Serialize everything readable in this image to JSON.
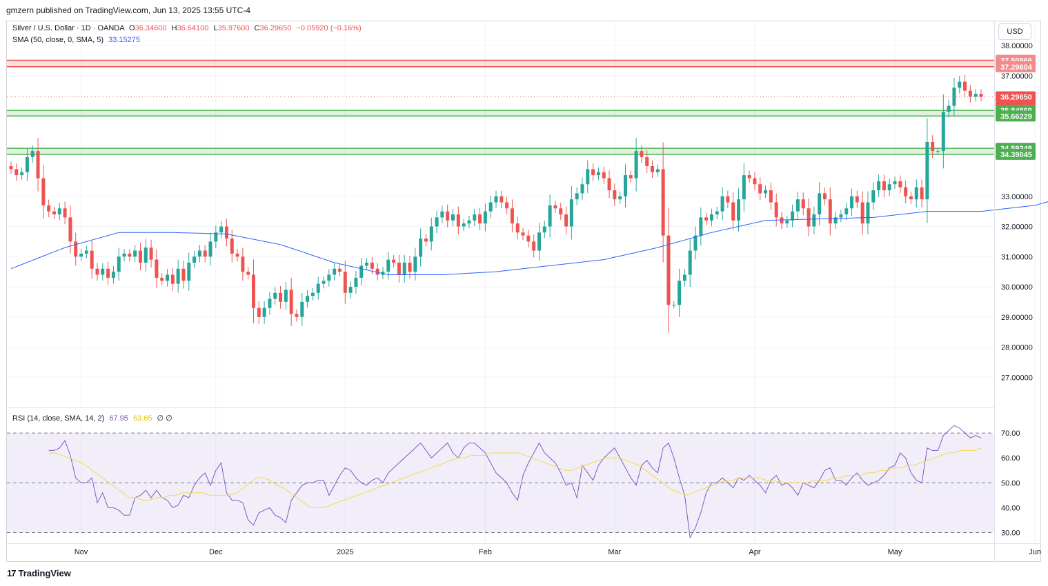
{
  "header": {
    "published": "gmzern published on TradingView.com, Jun 13, 2025 13:55 UTC-4"
  },
  "legend": {
    "symbol": "Silver / U.S. Dollar · 1D · OANDA",
    "o_label": "O",
    "o": "36.34600",
    "h_label": "H",
    "h": "36.64100",
    "l_label": "L",
    "l": "35.97600",
    "c_label": "C",
    "c": "36.29650",
    "change": "−0.05920 (−0.16%)",
    "sma_label": "SMA (50, close, 0, SMA, 5)",
    "sma_value": "33.15275",
    "rsi_label": "RSI (14, close, SMA, 14, 2)",
    "rsi_value": "67.95",
    "rsi_sma_value": "63.65",
    "rsi_extra": "∅ ∅"
  },
  "currency_button": "USD",
  "footer": {
    "brand": "TradingView",
    "logo_icon": "tradingview-logo-icon"
  },
  "colors": {
    "up": "#26a69a",
    "down": "#ef5350",
    "sma": "#2962ff",
    "rsi": "#7e57c2",
    "rsi_sma": "#f5d84a",
    "resistance_zone": "#ef5350",
    "support_zone": "#4caf50"
  },
  "chart_data": [
    {
      "type": "candlestick",
      "title": "Silver / U.S. Dollar · 1D · OANDA",
      "ylim": [
        26.0,
        38.8
      ],
      "y_ticks": [
        "38.00000",
        "37.00000",
        "33.00000",
        "32.00000",
        "31.00000",
        "30.00000",
        "29.00000",
        "28.00000",
        "27.00000"
      ],
      "x_labels": [
        {
          "label": "Nov",
          "index": 13
        },
        {
          "label": "Dec",
          "index": 38
        },
        {
          "label": "2025",
          "index": 62
        },
        {
          "label": "Feb",
          "index": 88
        },
        {
          "label": "Mar",
          "index": 112
        },
        {
          "label": "Apr",
          "index": 138
        },
        {
          "label": "May",
          "index": 164
        },
        {
          "label": "Jun",
          "index": 190
        }
      ],
      "price_labels": [
        {
          "value": "37.50966",
          "price": 37.50966,
          "kind": "zone-red"
        },
        {
          "value": "37.29604",
          "price": 37.29604,
          "kind": "zone-red"
        },
        {
          "value": "36.29650",
          "price": 36.2965,
          "kind": "last"
        },
        {
          "value": "03:04:46",
          "kind": "countdown"
        },
        {
          "value": "35.84869",
          "price": 35.84869,
          "kind": "zone-green"
        },
        {
          "value": "35.66229",
          "price": 35.66229,
          "kind": "zone-green"
        },
        {
          "value": "34.59249",
          "price": 34.59249,
          "kind": "zone-green"
        },
        {
          "value": "34.39045",
          "price": 34.39045,
          "kind": "zone-green"
        }
      ],
      "zones": [
        {
          "from": 37.29604,
          "to": 37.50966,
          "color": "red"
        },
        {
          "from": 35.66229,
          "to": 35.84869,
          "color": "green"
        },
        {
          "from": 34.39045,
          "to": 34.59249,
          "color": "green"
        }
      ],
      "last_price": 36.2965,
      "close": [
        33.9,
        33.7,
        33.8,
        34.3,
        34.5,
        33.6,
        32.7,
        32.5,
        32.4,
        32.6,
        32.3,
        31.5,
        31.0,
        31.1,
        31.2,
        30.6,
        30.4,
        30.6,
        30.3,
        30.5,
        31.0,
        31.1,
        31.0,
        31.2,
        30.8,
        31.3,
        30.9,
        30.3,
        30.2,
        30.4,
        30.1,
        30.6,
        30.2,
        30.8,
        31.0,
        31.2,
        31.0,
        31.5,
        31.8,
        32.0,
        31.6,
        31.1,
        31.0,
        30.5,
        30.4,
        29.3,
        29.0,
        29.3,
        29.6,
        29.8,
        29.5,
        29.9,
        29.1,
        29.0,
        29.5,
        29.7,
        29.8,
        30.1,
        30.2,
        30.4,
        30.6,
        30.5,
        29.8,
        30.0,
        30.3,
        30.7,
        30.8,
        30.6,
        30.4,
        30.5,
        30.9,
        30.8,
        30.4,
        30.8,
        30.5,
        31.0,
        31.6,
        31.5,
        32.0,
        32.3,
        32.5,
        32.2,
        32.4,
        32.0,
        32.1,
        32.2,
        32.4,
        32.1,
        32.5,
        32.8,
        33.0,
        32.8,
        32.6,
        32.1,
        31.8,
        31.7,
        31.5,
        31.2,
        31.8,
        32.0,
        32.7,
        32.6,
        32.4,
        32.0,
        32.9,
        33.1,
        33.4,
        33.9,
        33.7,
        33.8,
        33.6,
        33.2,
        32.9,
        33.0,
        33.7,
        33.6,
        34.5,
        34.3,
        34.0,
        33.8,
        33.9,
        31.7,
        29.4,
        29.4,
        30.2,
        30.4,
        31.2,
        31.7,
        32.3,
        32.2,
        32.4,
        32.5,
        33.0,
        32.8,
        32.2,
        32.9,
        33.7,
        33.6,
        33.4,
        33.1,
        33.2,
        32.8,
        32.3,
        32.1,
        32.2,
        32.5,
        32.9,
        32.6,
        32.0,
        32.4,
        33.1,
        32.9,
        32.1,
        32.3,
        32.4,
        32.6,
        33.0,
        32.8,
        32.1,
        32.8,
        33.2,
        33.5,
        33.2,
        33.4,
        33.5,
        33.3,
        33.0,
        32.9,
        33.3,
        32.9,
        34.8,
        34.5,
        34.5,
        35.8,
        36.0,
        36.6,
        36.8,
        36.5,
        36.3,
        36.4,
        36.3
      ],
      "series": [
        {
          "name": "SMA (50, close, 0, SMA, 5)",
          "type": "line",
          "points": [
            [
              0,
              30.6
            ],
            [
              10,
              31.3
            ],
            [
              20,
              31.8
            ],
            [
              30,
              31.8
            ],
            [
              40,
              31.75
            ],
            [
              50,
              31.4
            ],
            [
              60,
              30.8
            ],
            [
              70,
              30.4
            ],
            [
              80,
              30.4
            ],
            [
              90,
              30.5
            ],
            [
              100,
              30.7
            ],
            [
              110,
              30.9
            ],
            [
              120,
              31.3
            ],
            [
              130,
              31.8
            ],
            [
              140,
              32.2
            ],
            [
              150,
              32.25
            ],
            [
              160,
              32.3
            ],
            [
              170,
              32.5
            ],
            [
              180,
              32.5
            ],
            [
              190,
              32.7
            ],
            [
              199,
              33.15
            ]
          ]
        }
      ]
    },
    {
      "type": "line",
      "title": "RSI (14, close, SMA, 14, 2)",
      "ylim": [
        26,
        80
      ],
      "y_ticks": [
        "70.00",
        "60.00",
        "50.00",
        "40.00",
        "30.00"
      ],
      "bands": {
        "upper": 70,
        "middle": 50,
        "lower": 30
      },
      "series": [
        {
          "name": "RSI",
          "values": [
            63,
            63,
            64,
            67,
            61,
            52,
            50,
            50,
            52,
            42,
            46,
            40,
            40,
            39,
            37,
            37,
            44,
            45,
            47,
            44,
            47,
            44,
            43,
            40,
            41,
            45,
            44,
            49,
            52,
            54,
            49,
            55,
            58,
            46,
            43,
            43,
            42,
            35,
            33,
            38,
            39,
            40,
            37,
            36,
            34,
            43,
            46,
            49,
            50,
            50,
            51,
            51,
            45,
            49,
            53,
            56,
            55,
            52,
            50,
            49,
            51,
            52,
            50,
            54,
            56,
            58,
            60,
            62,
            64,
            66,
            63,
            60,
            62,
            64,
            66,
            62,
            60,
            64,
            66,
            66,
            64,
            62,
            58,
            54,
            52,
            50,
            46,
            43,
            53,
            58,
            62,
            66,
            62,
            60,
            58,
            54,
            49,
            50,
            44,
            57,
            54,
            51,
            57,
            60,
            62,
            64,
            60,
            56,
            52,
            49,
            57,
            59,
            56,
            54,
            64,
            66,
            60,
            52,
            45,
            28,
            32,
            38,
            46,
            50,
            50,
            52,
            50,
            48,
            52,
            51,
            53,
            51,
            49,
            46,
            51,
            53,
            49,
            50,
            48,
            45,
            50,
            49,
            48,
            51,
            55,
            56,
            51,
            51,
            49,
            52,
            54,
            51,
            49,
            50,
            51,
            53,
            56,
            57,
            62,
            60,
            54,
            51,
            50,
            64,
            63,
            63,
            69,
            71,
            73,
            72,
            70,
            68,
            69,
            68
          ]
        },
        {
          "name": "RSI SMA",
          "values": [
            62,
            62,
            61,
            60,
            59,
            58,
            56,
            54,
            52,
            50,
            48,
            46,
            44,
            44,
            43,
            43,
            44,
            44,
            45,
            45,
            46,
            46,
            46,
            46,
            45,
            45,
            45,
            45,
            46,
            48,
            50,
            52,
            52,
            51,
            49,
            48,
            46,
            44,
            42,
            40,
            40,
            40,
            41,
            42,
            43,
            44,
            45,
            46,
            47,
            48,
            49,
            50,
            51,
            52,
            53,
            54,
            55,
            56,
            57,
            58,
            59,
            60,
            60,
            61,
            61,
            61,
            62,
            62,
            62,
            62,
            62,
            61,
            60,
            59,
            58,
            57,
            56,
            55,
            55,
            56,
            57,
            58,
            59,
            60,
            60,
            60,
            59,
            58,
            57,
            55,
            53,
            51,
            49,
            47,
            46,
            45,
            46,
            47,
            48,
            49,
            50,
            51,
            51,
            52,
            52,
            52,
            52,
            51,
            51,
            50,
            50,
            50,
            50,
            50,
            51,
            51,
            51,
            52,
            52,
            53,
            53,
            53,
            54,
            54,
            55,
            55,
            56,
            56,
            57,
            57,
            58,
            59,
            60,
            61,
            62,
            62,
            63,
            63,
            63,
            64
          ]
        }
      ]
    }
  ]
}
